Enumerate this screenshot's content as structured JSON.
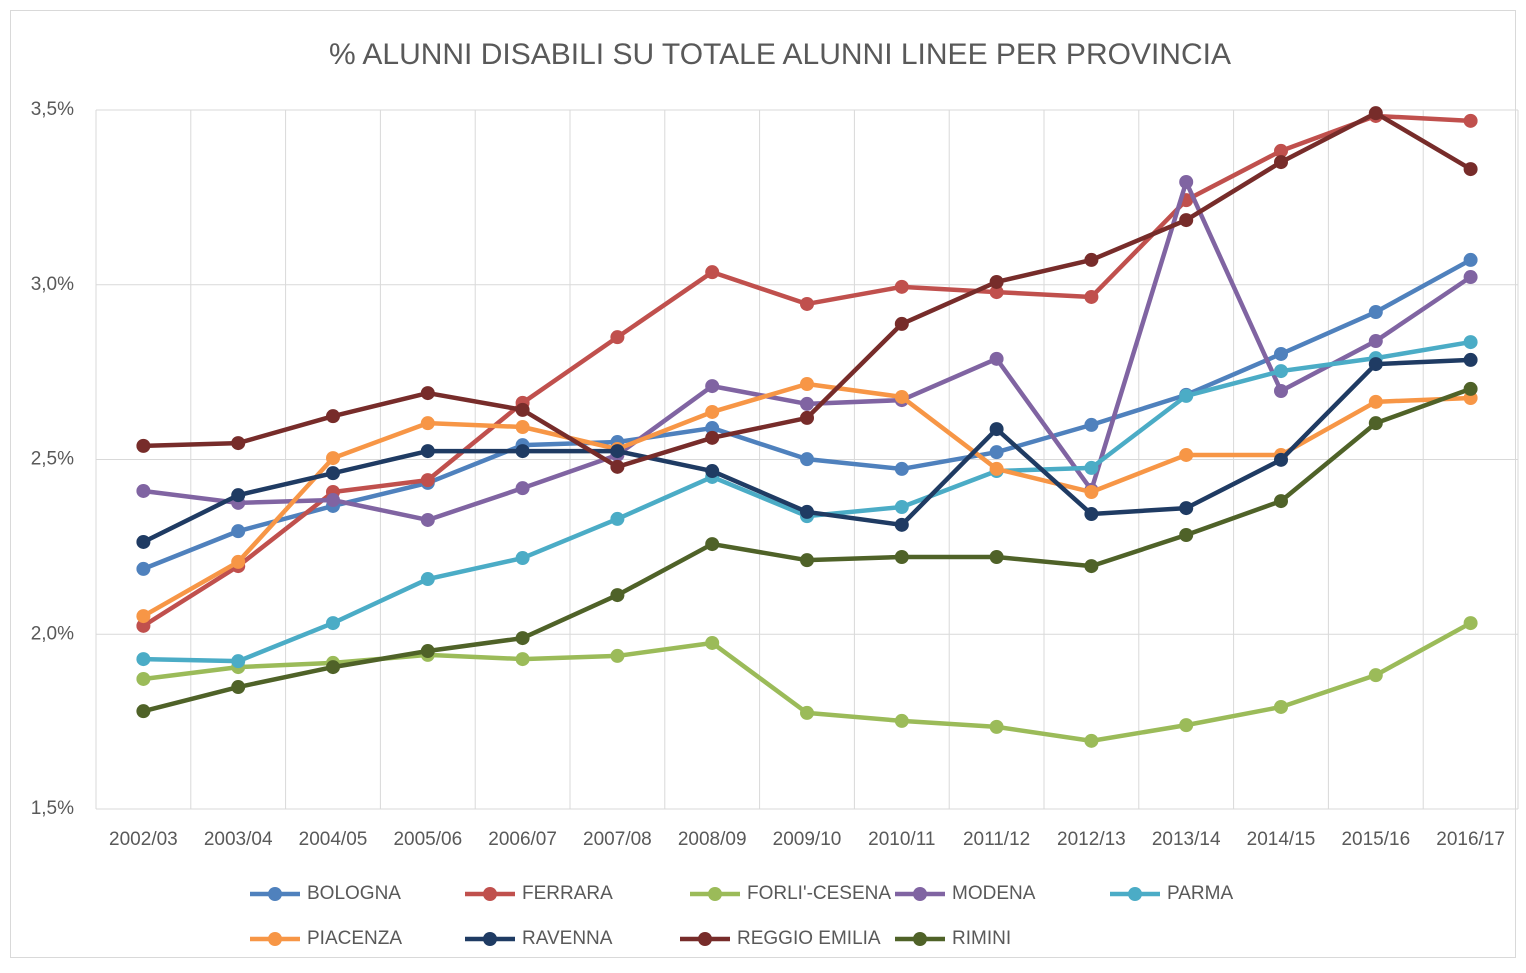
{
  "chart_data": {
    "type": "line",
    "title": "% ALUNNI DISABILI SU TOTALE ALUNNI LINEE PER PROVINCIA",
    "categories": [
      "2002/03",
      "2003/04",
      "2004/05",
      "2005/06",
      "2006/07",
      "2007/08",
      "2008/09",
      "2009/10",
      "2010/11",
      "2011/12",
      "2012/13",
      "2013/14",
      "2014/15",
      "2015/16",
      "2016/17"
    ],
    "ylim": [
      1.5,
      3.5
    ],
    "yticks": [
      {
        "value": 1.5,
        "label": "1,5%"
      },
      {
        "value": 2.0,
        "label": "2,0%"
      },
      {
        "value": 2.5,
        "label": "2,5%"
      },
      {
        "value": 3.0,
        "label": "3,0%"
      },
      {
        "value": 3.5,
        "label": "3,5%"
      }
    ],
    "grid": true,
    "legend": "bottom",
    "series": [
      {
        "name": "BOLOGNA",
        "color": "#4f81bd",
        "values": [
          2.187,
          2.295,
          2.367,
          2.433,
          2.541,
          2.55,
          2.59,
          2.501,
          2.473,
          2.521,
          2.599,
          2.685,
          2.802,
          2.922,
          3.071
        ]
      },
      {
        "name": "FERRARA",
        "color": "#c0504d",
        "values": [
          2.024,
          2.195,
          2.407,
          2.441,
          2.662,
          2.85,
          3.036,
          2.945,
          2.994,
          2.979,
          2.965,
          3.242,
          3.383,
          3.483,
          3.469
        ]
      },
      {
        "name": "FORLI'-CESENA",
        "color": "#9bbb59",
        "values": [
          1.872,
          1.906,
          1.918,
          1.941,
          1.929,
          1.938,
          1.975,
          1.775,
          1.752,
          1.735,
          1.695,
          1.74,
          1.792,
          1.883,
          2.032
        ]
      },
      {
        "name": "MODENA",
        "color": "#8064a2",
        "values": [
          2.41,
          2.376,
          2.384,
          2.327,
          2.418,
          2.513,
          2.71,
          2.659,
          2.67,
          2.788,
          2.413,
          3.294,
          2.696,
          2.839,
          3.022
        ]
      },
      {
        "name": "PARMA",
        "color": "#4bacc6",
        "values": [
          1.929,
          1.923,
          2.032,
          2.158,
          2.218,
          2.33,
          2.45,
          2.338,
          2.364,
          2.467,
          2.476,
          2.682,
          2.753,
          2.79,
          2.836
        ]
      },
      {
        "name": "PIACENZA",
        "color": "#f79646",
        "values": [
          2.052,
          2.207,
          2.504,
          2.604,
          2.593,
          2.53,
          2.636,
          2.716,
          2.679,
          2.473,
          2.407,
          2.513,
          2.513,
          2.665,
          2.676
        ]
      },
      {
        "name": "RAVENNA",
        "color": "#1f3b63",
        "values": [
          2.264,
          2.398,
          2.461,
          2.524,
          2.524,
          2.524,
          2.467,
          2.35,
          2.313,
          2.587,
          2.344,
          2.361,
          2.499,
          2.773,
          2.785
        ]
      },
      {
        "name": "REGGIO EMILIA",
        "color": "#772c2a",
        "values": [
          2.539,
          2.547,
          2.624,
          2.69,
          2.642,
          2.479,
          2.562,
          2.619,
          2.888,
          3.008,
          3.071,
          3.185,
          3.351,
          3.491,
          3.331
        ]
      },
      {
        "name": "RIMINI",
        "color": "#4f6228",
        "values": [
          1.78,
          1.849,
          1.906,
          1.952,
          1.989,
          2.112,
          2.258,
          2.212,
          2.221,
          2.221,
          2.195,
          2.284,
          2.381,
          2.604,
          2.702
        ]
      }
    ]
  }
}
